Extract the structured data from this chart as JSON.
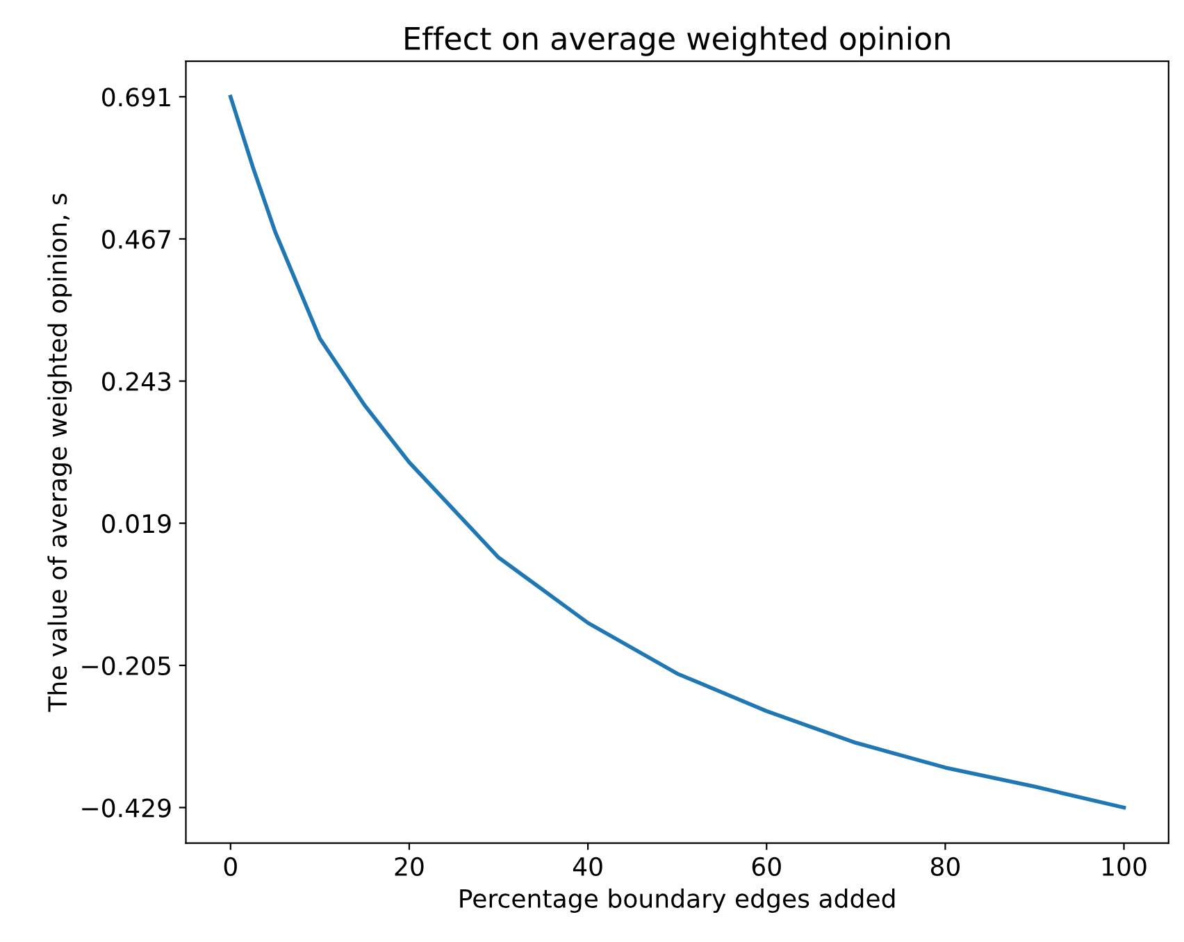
{
  "chart_data": {
    "type": "line",
    "title": "Effect on average weighted opinion",
    "xlabel": "Percentage boundary edges added",
    "ylabel": "The value of average weighted opinion, s",
    "x": [
      0,
      2.5,
      5,
      10,
      15,
      20,
      30,
      40,
      50,
      60,
      70,
      80,
      90,
      100
    ],
    "series": [
      {
        "color": "#1f77b4",
        "values": [
          0.691,
          0.58,
          0.478,
          0.31,
          0.205,
          0.115,
          -0.035,
          -0.138,
          -0.218,
          -0.277,
          -0.327,
          -0.366,
          -0.396,
          -0.429
        ]
      }
    ],
    "xlim": [
      -5,
      105
    ],
    "xticks": [
      0,
      20,
      40,
      60,
      80,
      100
    ],
    "ylim": [
      -0.485,
      0.747
    ],
    "yticks": [
      {
        "value": -0.429,
        "label": "−0.429"
      },
      {
        "value": -0.205,
        "label": "−0.205"
      },
      0.019,
      0.243,
      0.467,
      0.691
    ],
    "grid": false,
    "legend": false,
    "marker": "none",
    "line_style": "solid"
  }
}
